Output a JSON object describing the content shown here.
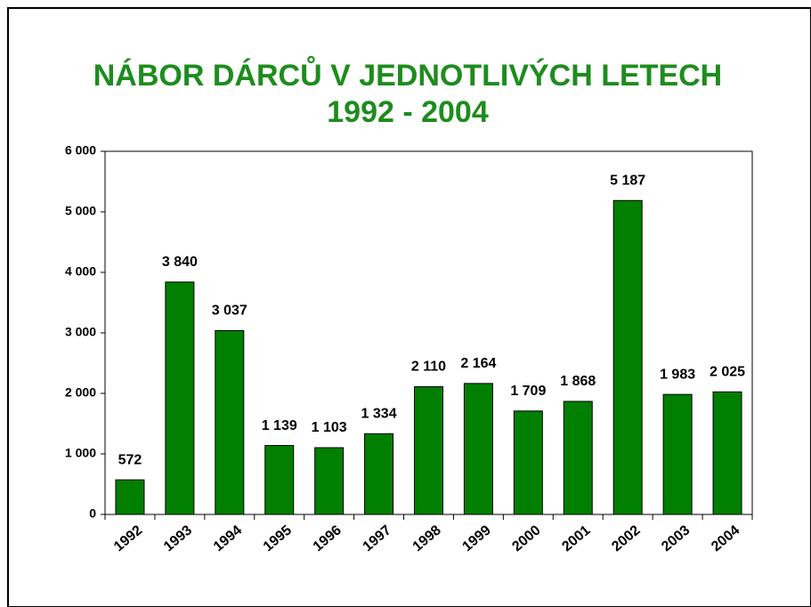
{
  "chart_data": {
    "type": "bar",
    "title": [
      "NÁBOR  DÁRCŮ  V  JEDNOTLIVÝCH  LETECH",
      "1992  -  2004"
    ],
    "categories": [
      "1992",
      "1993",
      "1994",
      "1995",
      "1996",
      "1997",
      "1998",
      "1999",
      "2000",
      "2001",
      "2002",
      "2003",
      "2004"
    ],
    "values": [
      572,
      3840,
      3037,
      1139,
      1103,
      1334,
      2110,
      2164,
      1709,
      1868,
      5187,
      1983,
      2025
    ],
    "value_labels": [
      "572",
      "3 840",
      "3 037",
      "1 139",
      "1 103",
      "1 334",
      "2 110",
      "2 164",
      "1 709",
      "1 868",
      "5 187",
      "1 983",
      "2 025"
    ],
    "color": "#007f00",
    "ylim": [
      0,
      6000
    ],
    "yticks": [
      0,
      {
        "value": 1000,
        "label": "1 000"
      },
      {
        "value": 2000,
        "label": "2 000"
      },
      {
        "value": 3000,
        "label": "3 000"
      },
      {
        "value": 4000,
        "label": "4 000"
      },
      {
        "value": 5000,
        "label": "5 000"
      },
      {
        "value": 6000,
        "label": "6 000"
      }
    ],
    "grid": false
  }
}
